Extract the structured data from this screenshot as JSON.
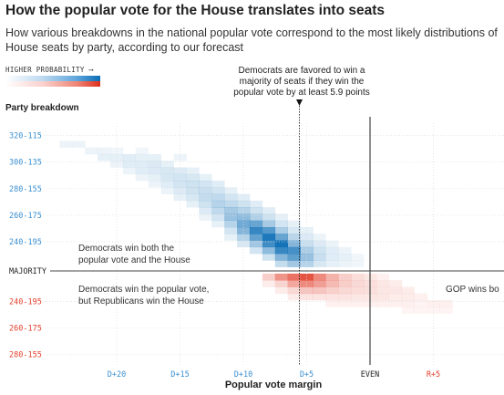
{
  "header": {
    "title": "How the popular vote for the House translates into seats",
    "subtitle": "How various breakdowns in the national popular vote correspond to the most likely distributions of House seats by party, according to our forecast"
  },
  "legend": {
    "label": "HIGHER PROBABILITY ⟶"
  },
  "annotation": {
    "line1": "Democrats are favored to win a",
    "line2": "majority of seats if they win the",
    "line3": "popular vote by at least 5.9 points"
  },
  "axes": {
    "ylabel": "Party breakdown",
    "xlabel": "Popular vote margin",
    "majority_label": "MAJORITY"
  },
  "regions": {
    "dem_both_1": "Democrats win both the",
    "dem_both_2": "popular vote and the House",
    "split_1": "Democrats win the popular vote,",
    "split_2": "but Republicans win the House",
    "gop": "GOP wins bo"
  },
  "colors": {
    "dem_tick": "#3a8fd0",
    "rep_tick": "#e2402d",
    "dem_cell": "#0b6db5",
    "rep_cell": "#e2402d",
    "axis": "#444444"
  },
  "chart_data": {
    "type": "heatmap",
    "title": "How the popular vote for the House translates into seats",
    "xlabel": "Popular vote margin",
    "ylabel": "Party breakdown",
    "x_ticks": [
      {
        "label": "D+20",
        "margin": -20,
        "party": "dem"
      },
      {
        "label": "D+15",
        "margin": -15,
        "party": "dem"
      },
      {
        "label": "D+10",
        "margin": -10,
        "party": "dem"
      },
      {
        "label": "D+5",
        "margin": -5,
        "party": "dem"
      },
      {
        "label": "EVEN",
        "margin": 0,
        "party": "even"
      },
      {
        "label": "R+5",
        "margin": 5,
        "party": "rep"
      }
    ],
    "y_ticks": [
      {
        "label": "320-115",
        "dem_seats": 320,
        "party": "dem"
      },
      {
        "label": "300-135",
        "dem_seats": 300,
        "party": "dem"
      },
      {
        "label": "280-155",
        "dem_seats": 280,
        "party": "dem"
      },
      {
        "label": "260-175",
        "dem_seats": 260,
        "party": "dem"
      },
      {
        "label": "240-195",
        "dem_seats": 240,
        "party": "dem"
      },
      {
        "label": "240-195",
        "dem_seats": 195,
        "party": "rep"
      },
      {
        "label": "260-175",
        "dem_seats": 175,
        "party": "rep"
      },
      {
        "label": "280-155",
        "dem_seats": 155,
        "party": "rep"
      }
    ],
    "majority_dem_seats": 218,
    "threshold_margin": -5.9,
    "cell_width_points": 1,
    "cell_height_seats": 5,
    "cells": [
      {
        "x": -24,
        "y": 311,
        "p": 0.08
      },
      {
        "x": -23,
        "y": 311,
        "p": 0.08
      },
      {
        "x": -22,
        "y": 306,
        "p": 0.08
      },
      {
        "x": -21,
        "y": 306,
        "p": 0.08
      },
      {
        "x": -21,
        "y": 301,
        "p": 0.1
      },
      {
        "x": -20,
        "y": 306,
        "p": 0.06
      },
      {
        "x": -20,
        "y": 301,
        "p": 0.1
      },
      {
        "x": -20,
        "y": 296,
        "p": 0.08
      },
      {
        "x": -19,
        "y": 301,
        "p": 0.12
      },
      {
        "x": -19,
        "y": 296,
        "p": 0.12
      },
      {
        "x": -19,
        "y": 291,
        "p": 0.08
      },
      {
        "x": -18,
        "y": 306,
        "p": 0.06
      },
      {
        "x": -18,
        "y": 301,
        "p": 0.1
      },
      {
        "x": -18,
        "y": 296,
        "p": 0.12
      },
      {
        "x": -18,
        "y": 291,
        "p": 0.12
      },
      {
        "x": -18,
        "y": 286,
        "p": 0.08
      },
      {
        "x": -17,
        "y": 301,
        "p": 0.1
      },
      {
        "x": -17,
        "y": 296,
        "p": 0.14
      },
      {
        "x": -17,
        "y": 291,
        "p": 0.14
      },
      {
        "x": -17,
        "y": 286,
        "p": 0.1
      },
      {
        "x": -17,
        "y": 281,
        "p": 0.08
      },
      {
        "x": -16,
        "y": 296,
        "p": 0.1
      },
      {
        "x": -16,
        "y": 291,
        "p": 0.16
      },
      {
        "x": -16,
        "y": 286,
        "p": 0.16
      },
      {
        "x": -16,
        "y": 281,
        "p": 0.12
      },
      {
        "x": -16,
        "y": 276,
        "p": 0.08
      },
      {
        "x": -15,
        "y": 301,
        "p": 0.08
      },
      {
        "x": -15,
        "y": 291,
        "p": 0.14
      },
      {
        "x": -15,
        "y": 286,
        "p": 0.18
      },
      {
        "x": -15,
        "y": 281,
        "p": 0.18
      },
      {
        "x": -15,
        "y": 276,
        "p": 0.14
      },
      {
        "x": -15,
        "y": 271,
        "p": 0.1
      },
      {
        "x": -14,
        "y": 291,
        "p": 0.1
      },
      {
        "x": -14,
        "y": 286,
        "p": 0.16
      },
      {
        "x": -14,
        "y": 281,
        "p": 0.2
      },
      {
        "x": -14,
        "y": 276,
        "p": 0.2
      },
      {
        "x": -14,
        "y": 271,
        "p": 0.16
      },
      {
        "x": -14,
        "y": 266,
        "p": 0.1
      },
      {
        "x": -13,
        "y": 286,
        "p": 0.1
      },
      {
        "x": -13,
        "y": 281,
        "p": 0.18
      },
      {
        "x": -13,
        "y": 276,
        "p": 0.22
      },
      {
        "x": -13,
        "y": 271,
        "p": 0.24
      },
      {
        "x": -13,
        "y": 266,
        "p": 0.2
      },
      {
        "x": -13,
        "y": 261,
        "p": 0.14
      },
      {
        "x": -13,
        "y": 256,
        "p": 0.08
      },
      {
        "x": -12,
        "y": 281,
        "p": 0.12
      },
      {
        "x": -12,
        "y": 276,
        "p": 0.18
      },
      {
        "x": -12,
        "y": 271,
        "p": 0.26
      },
      {
        "x": -12,
        "y": 266,
        "p": 0.3
      },
      {
        "x": -12,
        "y": 261,
        "p": 0.26
      },
      {
        "x": -12,
        "y": 256,
        "p": 0.18
      },
      {
        "x": -12,
        "y": 251,
        "p": 0.1
      },
      {
        "x": -11,
        "y": 276,
        "p": 0.1
      },
      {
        "x": -11,
        "y": 271,
        "p": 0.18
      },
      {
        "x": -11,
        "y": 266,
        "p": 0.26
      },
      {
        "x": -11,
        "y": 261,
        "p": 0.36
      },
      {
        "x": -11,
        "y": 256,
        "p": 0.42
      },
      {
        "x": -11,
        "y": 251,
        "p": 0.3
      },
      {
        "x": -11,
        "y": 246,
        "p": 0.18
      },
      {
        "x": -11,
        "y": 241,
        "p": 0.1
      },
      {
        "x": -10,
        "y": 271,
        "p": 0.12
      },
      {
        "x": -10,
        "y": 266,
        "p": 0.2
      },
      {
        "x": -10,
        "y": 261,
        "p": 0.3
      },
      {
        "x": -10,
        "y": 256,
        "p": 0.46
      },
      {
        "x": -10,
        "y": 251,
        "p": 0.58
      },
      {
        "x": -10,
        "y": 246,
        "p": 0.5
      },
      {
        "x": -10,
        "y": 241,
        "p": 0.3
      },
      {
        "x": -10,
        "y": 236,
        "p": 0.16
      },
      {
        "x": -9,
        "y": 266,
        "p": 0.12
      },
      {
        "x": -9,
        "y": 261,
        "p": 0.2
      },
      {
        "x": -9,
        "y": 256,
        "p": 0.32
      },
      {
        "x": -9,
        "y": 251,
        "p": 0.62
      },
      {
        "x": -9,
        "y": 246,
        "p": 0.82
      },
      {
        "x": -9,
        "y": 241,
        "p": 0.64
      },
      {
        "x": -9,
        "y": 236,
        "p": 0.38
      },
      {
        "x": -9,
        "y": 231,
        "p": 0.18
      },
      {
        "x": -8,
        "y": 261,
        "p": 0.12
      },
      {
        "x": -8,
        "y": 256,
        "p": 0.2
      },
      {
        "x": -8,
        "y": 251,
        "p": 0.36
      },
      {
        "x": -8,
        "y": 246,
        "p": 0.7
      },
      {
        "x": -8,
        "y": 241,
        "p": 0.92
      },
      {
        "x": -8,
        "y": 236,
        "p": 0.78
      },
      {
        "x": -8,
        "y": 231,
        "p": 0.46
      },
      {
        "x": -8,
        "y": 226,
        "p": 0.2
      },
      {
        "x": -7,
        "y": 256,
        "p": 0.1
      },
      {
        "x": -7,
        "y": 251,
        "p": 0.18
      },
      {
        "x": -7,
        "y": 246,
        "p": 0.34
      },
      {
        "x": -7,
        "y": 241,
        "p": 0.62
      },
      {
        "x": -7,
        "y": 236,
        "p": 0.96
      },
      {
        "x": -7,
        "y": 231,
        "p": 0.82
      },
      {
        "x": -7,
        "y": 226,
        "p": 0.5
      },
      {
        "x": -7,
        "y": 221,
        "p": 0.24
      },
      {
        "x": -6,
        "y": 251,
        "p": 0.1
      },
      {
        "x": -6,
        "y": 246,
        "p": 0.16
      },
      {
        "x": -6,
        "y": 241,
        "p": 0.28
      },
      {
        "x": -6,
        "y": 236,
        "p": 0.5
      },
      {
        "x": -6,
        "y": 231,
        "p": 0.76
      },
      {
        "x": -6,
        "y": 226,
        "p": 0.66
      },
      {
        "x": -6,
        "y": 221,
        "p": 0.38
      },
      {
        "x": -5,
        "y": 246,
        "p": 0.1
      },
      {
        "x": -5,
        "y": 241,
        "p": 0.14
      },
      {
        "x": -5,
        "y": 236,
        "p": 0.22
      },
      {
        "x": -5,
        "y": 231,
        "p": 0.34
      },
      {
        "x": -5,
        "y": 226,
        "p": 0.42
      },
      {
        "x": -5,
        "y": 221,
        "p": 0.3
      },
      {
        "x": -4,
        "y": 241,
        "p": 0.08
      },
      {
        "x": -4,
        "y": 236,
        "p": 0.14
      },
      {
        "x": -4,
        "y": 231,
        "p": 0.2
      },
      {
        "x": -4,
        "y": 226,
        "p": 0.22
      },
      {
        "x": -4,
        "y": 221,
        "p": 0.16
      },
      {
        "x": -3,
        "y": 236,
        "p": 0.08
      },
      {
        "x": -3,
        "y": 231,
        "p": 0.12
      },
      {
        "x": -3,
        "y": 226,
        "p": 0.12
      },
      {
        "x": -3,
        "y": 221,
        "p": 0.1
      },
      {
        "x": -2,
        "y": 231,
        "p": 0.08
      },
      {
        "x": -2,
        "y": 226,
        "p": 0.1
      },
      {
        "x": -2,
        "y": 221,
        "p": 0.08
      },
      {
        "x": -1,
        "y": 226,
        "p": 0.06
      },
      {
        "x": -1,
        "y": 221,
        "p": 0.06
      },
      {
        "x": -8,
        "y": 216,
        "p": 0.26
      },
      {
        "x": -8,
        "y": 211,
        "p": 0.1
      },
      {
        "x": -7,
        "y": 216,
        "p": 0.56
      },
      {
        "x": -7,
        "y": 211,
        "p": 0.22
      },
      {
        "x": -7,
        "y": 206,
        "p": 0.1
      },
      {
        "x": -6,
        "y": 216,
        "p": 0.74
      },
      {
        "x": -6,
        "y": 211,
        "p": 0.46
      },
      {
        "x": -6,
        "y": 206,
        "p": 0.2
      },
      {
        "x": -6,
        "y": 201,
        "p": 0.1
      },
      {
        "x": -5,
        "y": 216,
        "p": 0.9
      },
      {
        "x": -5,
        "y": 211,
        "p": 0.62
      },
      {
        "x": -5,
        "y": 206,
        "p": 0.3
      },
      {
        "x": -5,
        "y": 201,
        "p": 0.14
      },
      {
        "x": -4,
        "y": 216,
        "p": 0.62
      },
      {
        "x": -4,
        "y": 211,
        "p": 0.5
      },
      {
        "x": -4,
        "y": 206,
        "p": 0.3
      },
      {
        "x": -4,
        "y": 201,
        "p": 0.14
      },
      {
        "x": -3,
        "y": 216,
        "p": 0.4
      },
      {
        "x": -3,
        "y": 211,
        "p": 0.36
      },
      {
        "x": -3,
        "y": 206,
        "p": 0.24
      },
      {
        "x": -3,
        "y": 201,
        "p": 0.14
      },
      {
        "x": -3,
        "y": 196,
        "p": 0.08
      },
      {
        "x": -2,
        "y": 216,
        "p": 0.26
      },
      {
        "x": -2,
        "y": 211,
        "p": 0.26
      },
      {
        "x": -2,
        "y": 206,
        "p": 0.2
      },
      {
        "x": -2,
        "y": 201,
        "p": 0.14
      },
      {
        "x": -2,
        "y": 196,
        "p": 0.08
      },
      {
        "x": -1,
        "y": 216,
        "p": 0.18
      },
      {
        "x": -1,
        "y": 211,
        "p": 0.2
      },
      {
        "x": -1,
        "y": 206,
        "p": 0.18
      },
      {
        "x": -1,
        "y": 201,
        "p": 0.12
      },
      {
        "x": -1,
        "y": 196,
        "p": 0.08
      },
      {
        "x": 0,
        "y": 216,
        "p": 0.12
      },
      {
        "x": 0,
        "y": 211,
        "p": 0.16
      },
      {
        "x": 0,
        "y": 206,
        "p": 0.16
      },
      {
        "x": 0,
        "y": 201,
        "p": 0.12
      },
      {
        "x": 0,
        "y": 196,
        "p": 0.08
      },
      {
        "x": 1,
        "y": 216,
        "p": 0.08
      },
      {
        "x": 1,
        "y": 211,
        "p": 0.12
      },
      {
        "x": 1,
        "y": 206,
        "p": 0.12
      },
      {
        "x": 1,
        "y": 201,
        "p": 0.12
      },
      {
        "x": 1,
        "y": 196,
        "p": 0.08
      },
      {
        "x": 2,
        "y": 211,
        "p": 0.1
      },
      {
        "x": 2,
        "y": 206,
        "p": 0.12
      },
      {
        "x": 2,
        "y": 201,
        "p": 0.1
      },
      {
        "x": 2,
        "y": 196,
        "p": 0.08
      },
      {
        "x": 3,
        "y": 206,
        "p": 0.1
      },
      {
        "x": 3,
        "y": 201,
        "p": 0.1
      },
      {
        "x": 3,
        "y": 196,
        "p": 0.08
      },
      {
        "x": 3,
        "y": 191,
        "p": 0.06
      },
      {
        "x": 4,
        "y": 201,
        "p": 0.08
      },
      {
        "x": 4,
        "y": 196,
        "p": 0.06
      },
      {
        "x": 4,
        "y": 191,
        "p": 0.06
      },
      {
        "x": 5,
        "y": 196,
        "p": 0.08
      },
      {
        "x": 5,
        "y": 191,
        "p": 0.06
      },
      {
        "x": 6,
        "y": 196,
        "p": 0.08
      },
      {
        "x": 6,
        "y": 191,
        "p": 0.06
      }
    ]
  }
}
